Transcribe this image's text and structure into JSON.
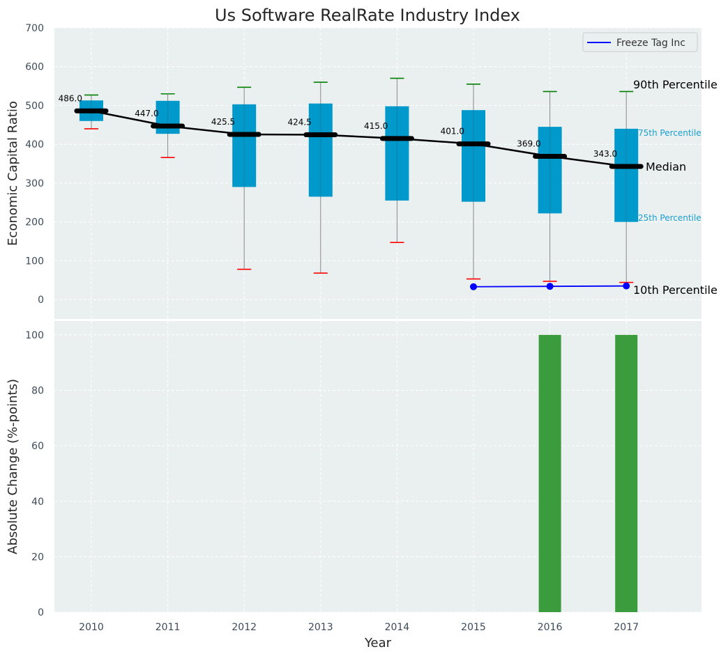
{
  "chart_data": [
    {
      "type": "box",
      "title": "Us Software RealRate Industry Index",
      "ylabel": "Economic Capital Ratio",
      "ylim": [
        -50,
        700
      ],
      "yticks": [
        0,
        100,
        200,
        300,
        400,
        500,
        600,
        700
      ],
      "categories": [
        "2010",
        "2011",
        "2012",
        "2013",
        "2014",
        "2015",
        "2016",
        "2017"
      ],
      "grid": true,
      "boxes": [
        {
          "year": "2010",
          "p10": 440,
          "p25": 460,
          "median": 486,
          "p75": 513,
          "p90": 527
        },
        {
          "year": "2011",
          "p10": 366,
          "p25": 427,
          "median": 447,
          "p75": 512,
          "p90": 530
        },
        {
          "year": "2012",
          "p10": 78,
          "p25": 290,
          "median": 425.5,
          "p75": 503,
          "p90": 547
        },
        {
          "year": "2013",
          "p10": 68,
          "p25": 265,
          "median": 424.5,
          "p75": 505,
          "p90": 560
        },
        {
          "year": "2014",
          "p10": 147,
          "p25": 255,
          "median": 415,
          "p75": 498,
          "p90": 570
        },
        {
          "year": "2015",
          "p10": 53,
          "p25": 252,
          "median": 401,
          "p75": 488,
          "p90": 555
        },
        {
          "year": "2016",
          "p10": 47,
          "p25": 222,
          "median": 369,
          "p75": 445,
          "p90": 536
        },
        {
          "year": "2017",
          "p10": 44,
          "p25": 200,
          "median": 343,
          "p75": 440,
          "p90": 536
        }
      ],
      "median_labels": [
        "486.0",
        "447.0",
        "425.5",
        "424.5",
        "415.0",
        "401.0",
        "369.0",
        "343.0"
      ],
      "series": [
        {
          "name": "Freeze Tag Inc",
          "x": [
            "2015",
            "2016",
            "2017"
          ],
          "values": [
            33,
            34,
            35
          ],
          "color": "#0000ff"
        }
      ],
      "legend": {
        "position": "top-right",
        "entries": [
          "Freeze Tag Inc"
        ]
      },
      "annotations": {
        "p90": "90th Percentile",
        "p75": "75th Percentile",
        "median": "Median",
        "p25": "25th Percentile",
        "p10": "10th Percentile"
      },
      "colors": {
        "box": "#0099cc",
        "median": "#000000",
        "p90_cap": "#008000",
        "p10_cap": "#ff0000",
        "background": "#eaeff0"
      }
    },
    {
      "type": "bar",
      "xlabel": "Year",
      "ylabel": "Absolute Change (%-points)",
      "ylim": [
        0,
        105
      ],
      "yticks": [
        0,
        20,
        40,
        60,
        80,
        100
      ],
      "categories": [
        "2010",
        "2011",
        "2012",
        "2013",
        "2014",
        "2015",
        "2016",
        "2017"
      ],
      "values": [
        null,
        null,
        null,
        null,
        null,
        null,
        100,
        100
      ],
      "grid": true,
      "colors": {
        "bar": "#3a9c3d"
      }
    }
  ]
}
